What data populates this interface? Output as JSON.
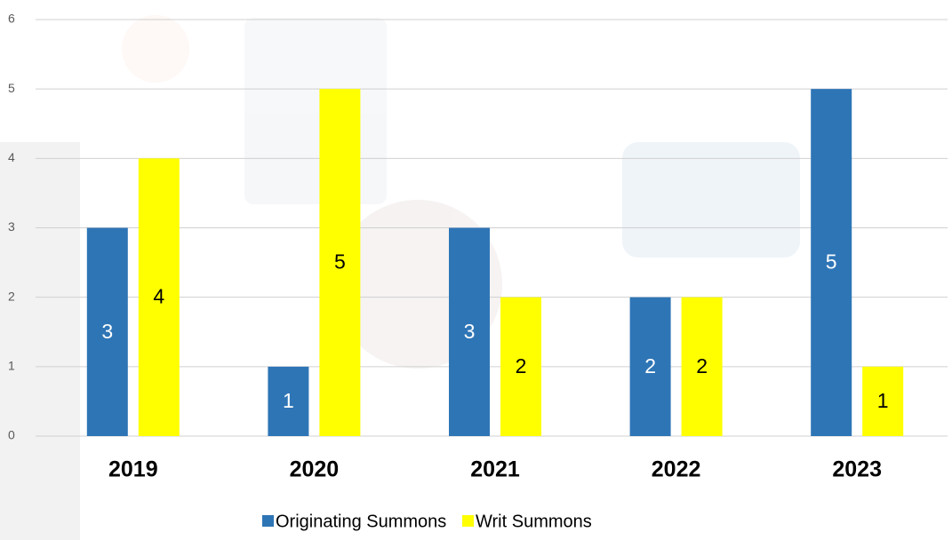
{
  "chart_data": {
    "type": "bar",
    "categories": [
      "2019",
      "2020",
      "2021",
      "2022",
      "2023"
    ],
    "series": [
      {
        "name": "Originating Summons",
        "color": "#2e75b6",
        "values": [
          3,
          1,
          3,
          2,
          5
        ]
      },
      {
        "name": "Writ Summons",
        "color": "#ffff00",
        "values": [
          4,
          5,
          2,
          2,
          1
        ]
      }
    ],
    "ylim": [
      0,
      6
    ],
    "yticks": [
      0,
      1,
      2,
      3,
      4,
      5,
      6
    ],
    "grid": true,
    "legend": "bottom"
  }
}
